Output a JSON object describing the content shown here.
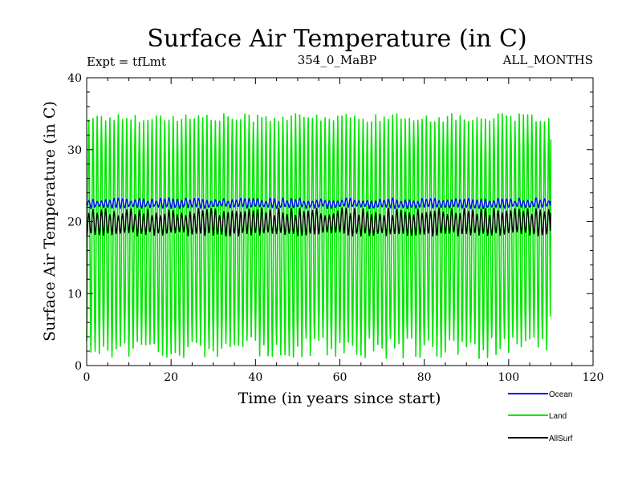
{
  "chart_data": {
    "type": "line",
    "title": "Surface Air Temperature (in C)",
    "subtitle_left": "Expt = tfLmt",
    "subtitle_center": "354_0_MaBP",
    "subtitle_right": "ALL_MONTHS",
    "xlabel": "Time (in years since start)",
    "ylabel": "Surface Air Temperature (in C)",
    "xlim": [
      0,
      120
    ],
    "ylim": [
      0,
      40
    ],
    "x_ticks": [
      "0",
      "20",
      "40",
      "60",
      "80",
      "100",
      "120"
    ],
    "y_ticks": [
      "0",
      "10",
      "20",
      "30",
      "40"
    ],
    "x_tick_values": [
      0,
      20,
      40,
      60,
      80,
      100,
      120
    ],
    "y_tick_values": [
      0,
      10,
      20,
      30,
      40
    ],
    "period_years": 1,
    "series": [
      {
        "name": "Land",
        "color": "#00e600",
        "cycles": 110,
        "x_start": 0,
        "x_end": 110,
        "mean_max": 34.5,
        "mean_min": 3.0,
        "max_range": [
          33.8,
          35.0
        ],
        "min_range": [
          1.0,
          4.0
        ]
      },
      {
        "name": "Ocean",
        "color": "#0000ff",
        "cycles": 110,
        "x_start": 0,
        "x_end": 110,
        "mean_max": 23.0,
        "mean_min": 22.0,
        "max_range": [
          22.8,
          23.3
        ],
        "min_range": [
          21.8,
          22.2
        ]
      },
      {
        "name": "AllSurf",
        "color": "#000000",
        "cycles": 110,
        "x_start": 0,
        "x_end": 110,
        "mean_max": 21.5,
        "mean_min": 18.2,
        "max_range": [
          20.8,
          21.9
        ],
        "min_range": [
          18.0,
          18.6
        ]
      }
    ],
    "legend": [
      {
        "label": "Ocean",
        "color": "#0000ff"
      },
      {
        "label": "Land",
        "color": "#00e600"
      },
      {
        "label": "AllSurf",
        "color": "#000000"
      }
    ],
    "legend_position": "bottom-right, below plot"
  }
}
